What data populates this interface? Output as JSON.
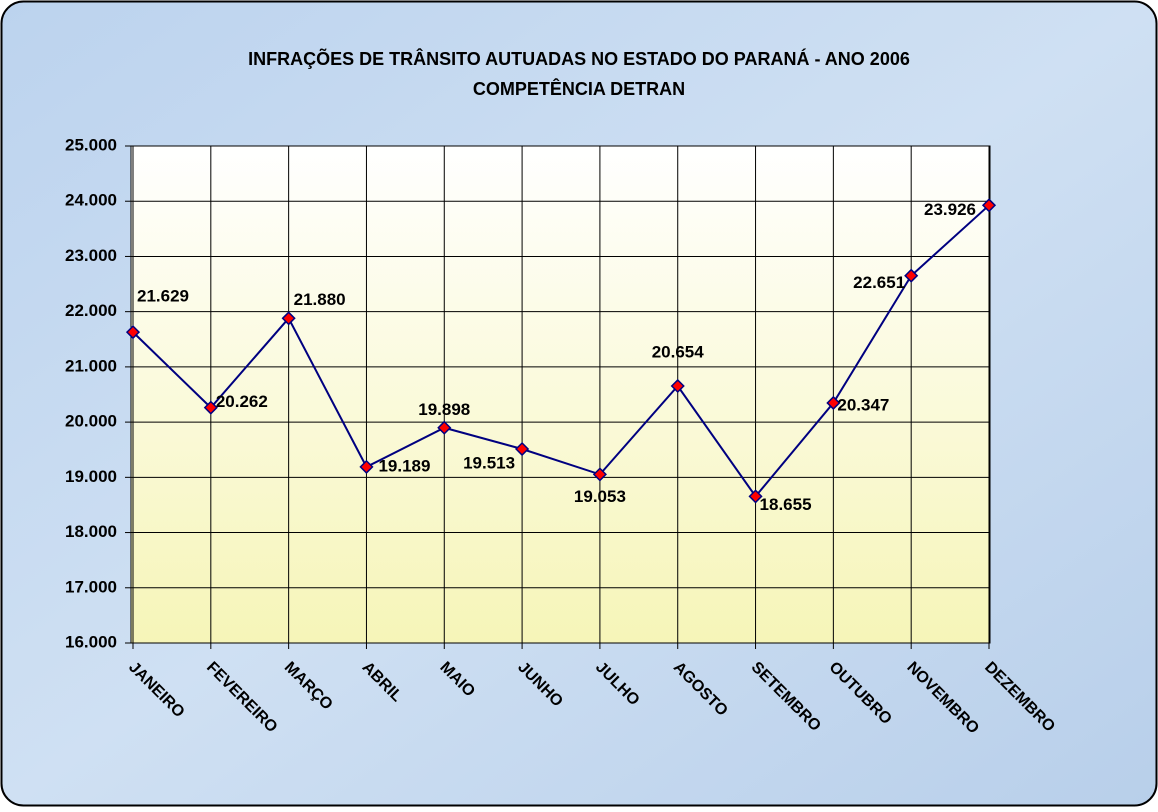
{
  "chart_data": {
    "type": "line",
    "title": "INFRAÇÕES DE TRÂNSITO AUTUADAS NO ESTADO DO PARANÁ - ANO 2006",
    "subtitle": "COMPETÊNCIA DETRAN",
    "categories": [
      "JANEIRO",
      "FEVEREIRO",
      "MARÇO",
      "ABRIL",
      "MAIO",
      "JUNHO",
      "JULHO",
      "AGOSTO",
      "SETEMBRO",
      "OUTUBRO",
      "NOVEMBRO",
      "DEZEMBRO"
    ],
    "series": [
      {
        "name": null,
        "color": "#000080",
        "marker_color": "#ff0000",
        "values": [
          21629,
          20262,
          21880,
          19189,
          19898,
          19513,
          19053,
          20654,
          18655,
          20347,
          22651,
          23926
        ],
        "value_labels": [
          "21.629",
          "20.262",
          "21.880",
          "19.189",
          "19.898",
          "19.513",
          "19.053",
          "20.654",
          "18.655",
          "20.347",
          "22.651",
          "23.926"
        ]
      }
    ],
    "ylim": [
      16000,
      25000
    ],
    "yticks": [
      {
        "value": 16000,
        "label": "16.000"
      },
      {
        "value": 17000,
        "label": "17.000"
      },
      {
        "value": 18000,
        "label": "18.000"
      },
      {
        "value": 19000,
        "label": "19.000"
      },
      {
        "value": 20000,
        "label": "20.000"
      },
      {
        "value": 21000,
        "label": "21.000"
      },
      {
        "value": 22000,
        "label": "22.000"
      },
      {
        "value": 23000,
        "label": "23.000"
      },
      {
        "value": 24000,
        "label": "24.000"
      },
      {
        "value": 25000,
        "label": "25.000"
      }
    ],
    "grid": true
  }
}
